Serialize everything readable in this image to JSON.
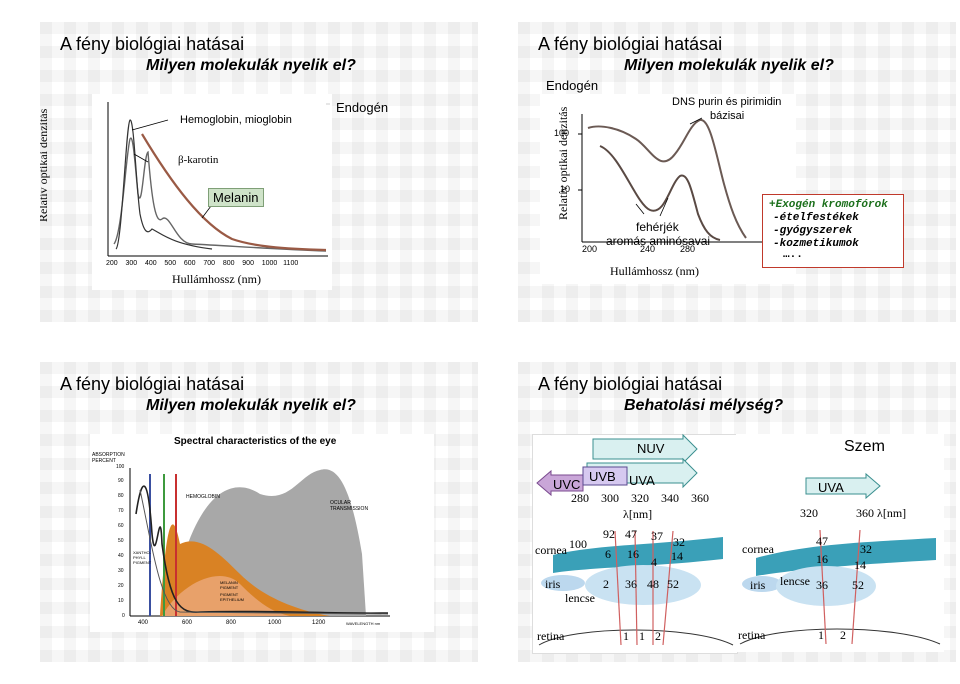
{
  "slides": [
    {
      "title": "A fény biológiai hatásai",
      "subtitle": "Milyen molekulák nyelik el?",
      "ylabel": "Relatív optikai denzitás",
      "xlabel": "Hullámhossz (nm)",
      "endogen": "Endogén",
      "labels": [
        "Hemoglobin, mioglobin",
        "β-karotin",
        "Melanin"
      ],
      "ticks": [
        "200",
        "300",
        "400",
        "500",
        "600",
        "700",
        "800",
        "900",
        "1000",
        "1100"
      ]
    },
    {
      "title": "A fény biológiai hatásai",
      "subtitle": "Milyen molekulák nyelik el?",
      "endogen": "Endogén",
      "ylabel": "Relatív optikai denzitás",
      "xlabel": "Hullámhossz (nm)",
      "dna_label_1": "DNS purin és pirimidin",
      "dna_label_2": "bázisai",
      "protein_label_1": "fehérjék",
      "protein_label_2": "aromás aminósavai",
      "yticks": [
        "100",
        "10"
      ],
      "xticks": [
        "200",
        "240",
        "280"
      ],
      "exogen_title": "+Exogén kromofórok",
      "exogen_items": [
        "-ételfestékek",
        "-gyógyszerek",
        "-kozmetikumok"
      ],
      "exogen_more": "….."
    },
    {
      "title": "A fény biológiai hatásai",
      "subtitle": "Milyen molekulák nyelik el?",
      "chart_title": "Spectral characteristics of the eye",
      "y_title_1": "ABSORPTION",
      "y_title_2": "PERCENT",
      "yticks": [
        "100",
        "90",
        "80",
        "70",
        "60",
        "50",
        "40",
        "30",
        "20",
        "10",
        "0"
      ],
      "xticks": [
        "400",
        "600",
        "800",
        "1000",
        "1200"
      ],
      "xunit": "WAVELENGTH nm",
      "hemoglobin": "HEMOGLOBIN",
      "ocular_1": "OCULAR",
      "ocular_2": "TRANSMISSION",
      "melanin_1": "MELANIN",
      "melanin_2": "PIGMENT",
      "pigment_1": "PIGMENT",
      "pigment_2": "EPITHELIUM",
      "xantho_1": "XANTHO-",
      "xantho_2": "PHYLL",
      "xantho_3": "PIGMENT"
    },
    {
      "title": "A fény biológiai hatásai",
      "subtitle": "Behatolási mélység?",
      "nuv": "NUV",
      "uvb": "UVB",
      "uvc": "UVC",
      "uva": "UVA",
      "wavelengths": [
        "280",
        "300",
        "320",
        "340",
        "360"
      ],
      "lambda": "λ[nm]",
      "cornea": "cornea",
      "iris": "iris",
      "lencse": "lencse",
      "retina": "retina",
      "cornea_values": [
        "100",
        "92",
        "47",
        "37",
        "32"
      ],
      "cornea_values_2": [
        "6",
        "16",
        "14"
      ],
      "cornea_value_4": "4",
      "lens_values": [
        "2",
        "36",
        "48",
        "52"
      ],
      "retina_values": [
        "1",
        "1",
        "2"
      ],
      "szem": "Szem",
      "right_uva": "UVA",
      "right_wl": [
        "320",
        "360 λ[nm]"
      ],
      "right_cornea": "cornea",
      "right_iris": "iris",
      "right_lencse": "lencse",
      "right_retina": "retina",
      "right_cornea_values": [
        "47",
        "32",
        "16",
        "14"
      ],
      "right_lens_values": [
        "36",
        "52"
      ],
      "right_retina_values": [
        "1",
        "2"
      ]
    }
  ]
}
